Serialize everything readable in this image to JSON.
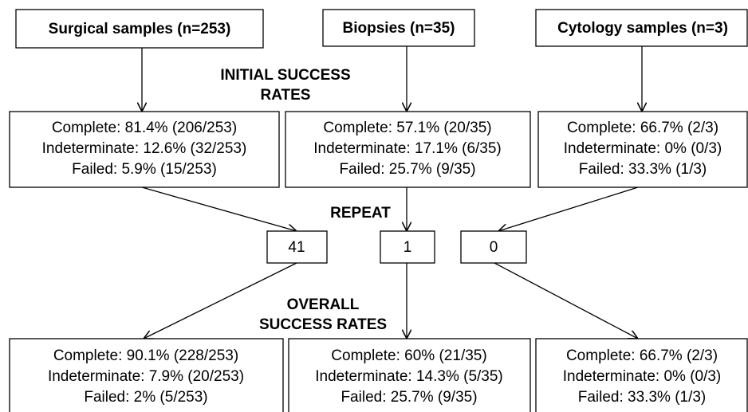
{
  "sources": [
    {
      "label": "Surgical samples (n=253)"
    },
    {
      "label": "Biopsies (n=35)"
    },
    {
      "label": "Cytology samples (n=3)"
    }
  ],
  "initial_heading": [
    "INITIAL SUCCESS",
    "RATES"
  ],
  "initial": [
    {
      "lines": [
        "Complete: 81.4% (206/253)",
        "Indeterminate: 12.6% (32/253)",
        "Failed: 5.9% (15/253)"
      ]
    },
    {
      "lines": [
        "Complete: 57.1% (20/35)",
        "Indeterminate: 17.1% (6/35)",
        "Failed: 25.7% (9/35)"
      ]
    },
    {
      "lines": [
        "Complete: 66.7% (2/3)",
        "Indeterminate: 0% (0/3)",
        "Failed: 33.3% (1/3)"
      ]
    }
  ],
  "repeat_heading": "REPEAT",
  "repeats": [
    41,
    1,
    0
  ],
  "overall_heading": [
    "OVERALL",
    "SUCCESS RATES"
  ],
  "overall": [
    {
      "lines": [
        "Complete: 90.1% (228/253)",
        "Indeterminate: 7.9% (20/253)",
        "Failed: 2% (5/253)"
      ]
    },
    {
      "lines": [
        "Complete: 60% (21/35)",
        "Indeterminate: 14.3% (5/35)",
        "Failed: 25.7% (9/35)"
      ]
    },
    {
      "lines": [
        "Complete: 66.7% (2/3)",
        "Indeterminate: 0% (0/3)",
        "Failed: 33.3% (1/3)"
      ]
    }
  ]
}
